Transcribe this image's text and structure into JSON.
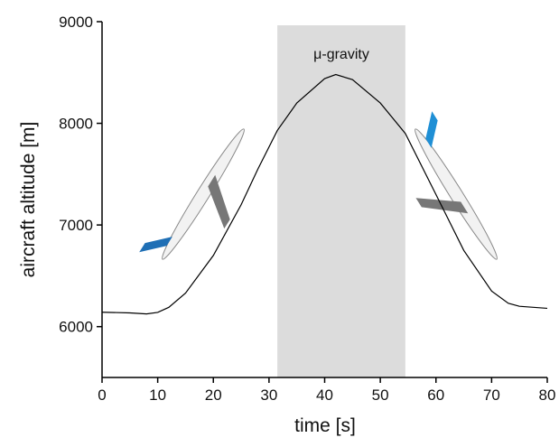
{
  "chart_data": {
    "type": "line",
    "x_label": "time [s]",
    "y_label": "aircraft altitude [m]",
    "x": [
      0,
      5,
      8,
      10,
      12,
      15,
      20,
      25,
      28,
      31.5,
      35,
      40,
      42,
      45,
      50,
      54.5,
      60,
      65,
      70,
      73,
      75,
      80
    ],
    "series": [
      {
        "color": "#000000",
        "values": [
          6142,
          6135,
          6125,
          6140,
          6190,
          6330,
          6700,
          7200,
          7550,
          7930,
          8200,
          8440,
          8480,
          8430,
          8200,
          7900,
          7300,
          6750,
          6350,
          6230,
          6200,
          6180
        ]
      }
    ],
    "shaded_region": {
      "label": "μ-gravity",
      "range": [
        31.5,
        54.5
      ],
      "color": "#dcdcdc"
    },
    "xlim": [
      0,
      80
    ],
    "xticks": [
      0,
      10,
      20,
      30,
      40,
      50,
      60,
      70,
      80
    ],
    "ylim": [
      5500,
      9000
    ],
    "yticks": [
      6000,
      7000,
      8000,
      9000
    ]
  }
}
